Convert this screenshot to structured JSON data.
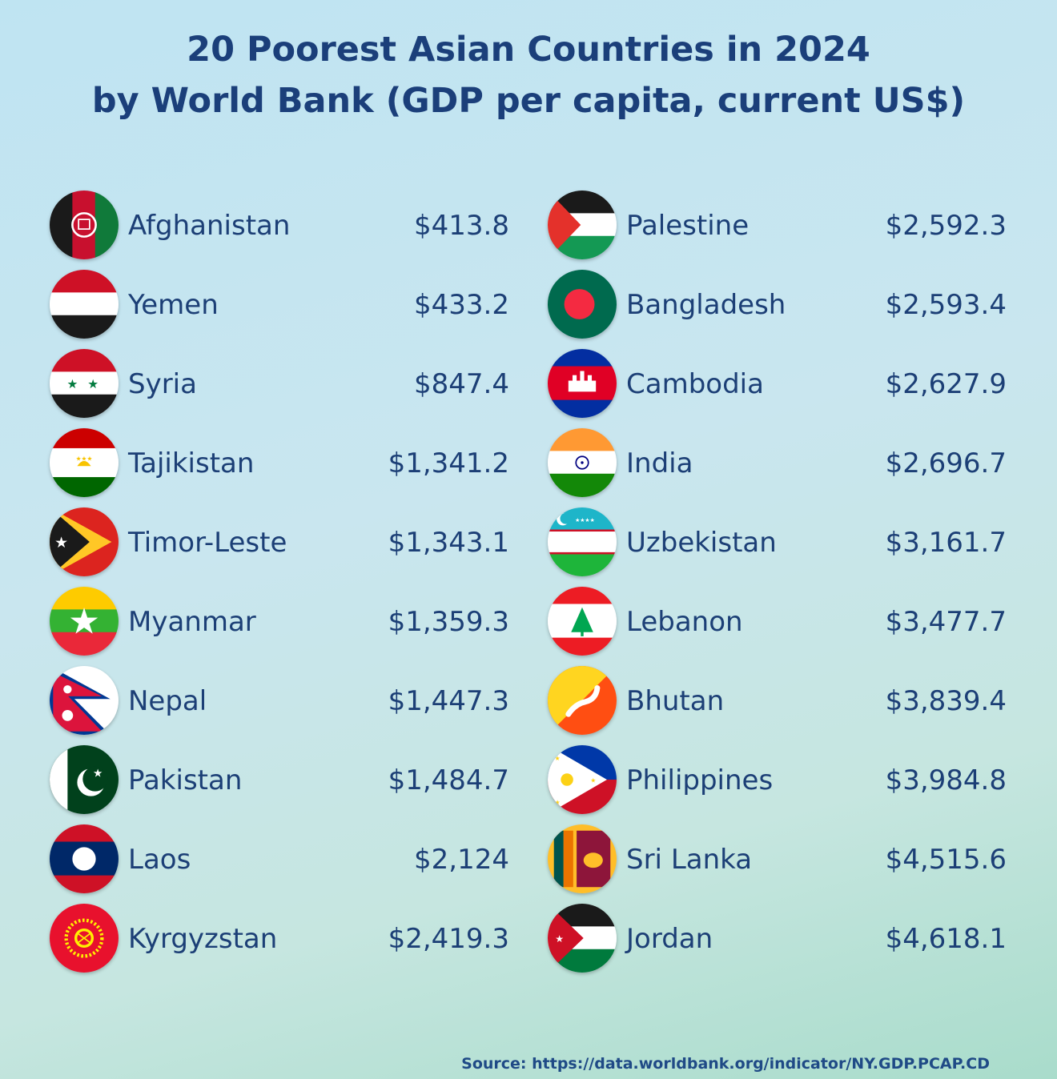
{
  "title": {
    "line1": "20 Poorest Asian Countries in 2024",
    "line2": "by World Bank (GDP per capita, current US$)"
  },
  "left": [
    {
      "country": "Afghanistan",
      "value": "$413.8",
      "flag": "afghanistan-flag-icon"
    },
    {
      "country": "Yemen",
      "value": "$433.2",
      "flag": "yemen-flag-icon"
    },
    {
      "country": "Syria",
      "value": "$847.4",
      "flag": "syria-flag-icon"
    },
    {
      "country": "Tajikistan",
      "value": "$1,341.2",
      "flag": "tajikistan-flag-icon"
    },
    {
      "country": "Timor-Leste",
      "value": "$1,343.1",
      "flag": "timor-leste-flag-icon"
    },
    {
      "country": "Myanmar",
      "value": "$1,359.3",
      "flag": "myanmar-flag-icon"
    },
    {
      "country": "Nepal",
      "value": "$1,447.3",
      "flag": "nepal-flag-icon"
    },
    {
      "country": "Pakistan",
      "value": "$1,484.7",
      "flag": "pakistan-flag-icon"
    },
    {
      "country": "Laos",
      "value": "$2,124",
      "flag": "laos-flag-icon"
    },
    {
      "country": "Kyrgyzstan",
      "value": "$2,419.3",
      "flag": "kyrgyzstan-flag-icon"
    }
  ],
  "right": [
    {
      "country": "Palestine",
      "value": "$2,592.3",
      "flag": "palestine-flag-icon"
    },
    {
      "country": "Bangladesh",
      "value": "$2,593.4",
      "flag": "bangladesh-flag-icon"
    },
    {
      "country": "Cambodia",
      "value": "$2,627.9",
      "flag": "cambodia-flag-icon"
    },
    {
      "country": "India",
      "value": "$2,696.7",
      "flag": "india-flag-icon"
    },
    {
      "country": "Uzbekistan",
      "value": "$3,161.7",
      "flag": "uzbekistan-flag-icon"
    },
    {
      "country": "Lebanon",
      "value": "$3,477.7",
      "flag": "lebanon-flag-icon"
    },
    {
      "country": "Bhutan",
      "value": "$3,839.4",
      "flag": "bhutan-flag-icon"
    },
    {
      "country": "Philippines",
      "value": "$3,984.8",
      "flag": "philippines-flag-icon"
    },
    {
      "country": "Sri Lanka",
      "value": "$4,515.6",
      "flag": "sri-lanka-flag-icon"
    },
    {
      "country": "Jordan",
      "value": "$4,618.1",
      "flag": "jordan-flag-icon"
    }
  ],
  "source": "Source: https://data.worldbank.org/indicator/NY.GDP.PCAP.CD"
}
